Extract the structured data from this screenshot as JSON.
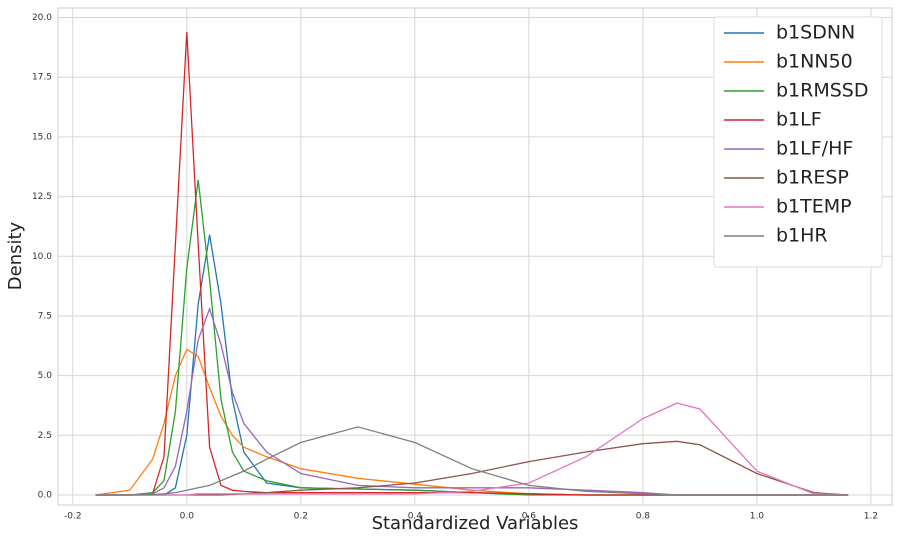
{
  "chart_data": {
    "type": "line",
    "xlabel": "Standardized Variables",
    "ylabel": "Density",
    "x": [
      -0.16,
      -0.1,
      -0.06,
      -0.04,
      -0.02,
      0,
      0.02,
      0.04,
      0.06,
      0.08,
      0.1,
      0.14,
      0.2,
      0.3,
      0.4,
      0.5,
      0.6,
      0.7,
      0.8,
      0.86,
      0.9,
      1.0,
      1.1,
      1.16
    ],
    "series": [
      {
        "name": "b1SDNN",
        "color": "#1f77b4",
        "values": [
          0,
          0,
          0,
          0,
          0.3,
          2.5,
          8,
          10.9,
          8,
          4,
          1.8,
          0.5,
          0.3,
          0.25,
          0.2,
          0.1,
          0.05,
          0,
          0,
          0,
          0,
          0,
          0,
          0
        ]
      },
      {
        "name": "b1NN50",
        "color": "#ff7f0e",
        "values": [
          0,
          0.2,
          1.5,
          3,
          5,
          6.1,
          5.8,
          4.5,
          3.3,
          2.5,
          2,
          1.6,
          1.1,
          0.7,
          0.45,
          0.2,
          0.05,
          0,
          0,
          0,
          0,
          0,
          0,
          0
        ]
      },
      {
        "name": "b1RMSSD",
        "color": "#2ca02c",
        "values": [
          0,
          0,
          0.1,
          0.6,
          3.5,
          9.5,
          13.2,
          9,
          4,
          1.8,
          1,
          0.6,
          0.3,
          0.25,
          0.2,
          0.1,
          0,
          0,
          0,
          0,
          0,
          0,
          0,
          0
        ]
      },
      {
        "name": "b1LF",
        "color": "#d62728",
        "values": [
          0,
          0,
          0.05,
          1.6,
          10.5,
          19.4,
          10.5,
          2,
          0.4,
          0.2,
          0.15,
          0.1,
          0.1,
          0.1,
          0.1,
          0.1,
          0.05,
          0,
          0,
          0,
          0,
          0,
          0,
          0
        ]
      },
      {
        "name": "b1LF/HF",
        "color": "#9467bd",
        "values": [
          0,
          0,
          0.05,
          0.3,
          1.2,
          3.5,
          6.5,
          7.8,
          6.3,
          4.3,
          3,
          1.8,
          0.9,
          0.4,
          0.3,
          0.3,
          0.3,
          0.2,
          0.1,
          0,
          0,
          0,
          0,
          0
        ]
      },
      {
        "name": "b1RESP",
        "color": "#8c564b",
        "values": [
          0,
          0,
          0,
          0,
          0,
          0,
          0,
          0,
          0,
          0.02,
          0.05,
          0.1,
          0.2,
          0.3,
          0.5,
          0.9,
          1.4,
          1.8,
          2.15,
          2.25,
          2.1,
          0.9,
          0.1,
          0
        ]
      },
      {
        "name": "b1TEMP",
        "color": "#e377c2",
        "values": [
          0,
          0,
          0,
          0,
          0,
          0,
          0.05,
          0.05,
          0.05,
          0.05,
          0.05,
          0.05,
          0.05,
          0.05,
          0.05,
          0.15,
          0.5,
          1.6,
          3.2,
          3.85,
          3.6,
          1,
          0.05,
          0
        ]
      },
      {
        "name": "b1HR",
        "color": "#7f7f7f",
        "values": [
          0,
          0,
          0.02,
          0.05,
          0.1,
          0.2,
          0.3,
          0.4,
          0.6,
          0.8,
          1,
          1.5,
          2.2,
          2.85,
          2.2,
          1.1,
          0.4,
          0.15,
          0.05,
          0,
          0,
          0,
          0,
          0
        ]
      }
    ],
    "xlim": [
      -0.226,
      1.237
    ],
    "ylim": [
      -0.42,
      20.4
    ],
    "xticks": [
      -0.2,
      {
        "value": 0,
        "label": "0.0"
      },
      0.2,
      0.4,
      0.6,
      0.8,
      {
        "value": 1,
        "label": "1.0"
      },
      1.2
    ],
    "yticks": [
      {
        "value": 0,
        "label": "0.0"
      },
      2.5,
      {
        "value": 5,
        "label": "5.0"
      },
      7.5,
      {
        "value": 10,
        "label": "10.0"
      },
      12.5,
      {
        "value": 15,
        "label": "15.0"
      },
      17.5,
      {
        "value": 20,
        "label": "20.0"
      }
    ],
    "grid": true,
    "legend": "upper right"
  }
}
